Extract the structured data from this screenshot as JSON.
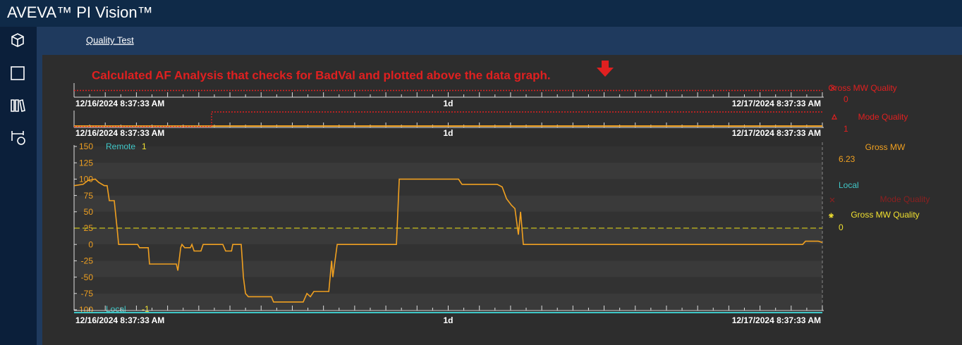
{
  "header": {
    "title": "AVEVA™ PI Vision™"
  },
  "display": {
    "title": "Quality Test"
  },
  "annotation": "Calculated AF Analysis that checks for BadVal and plotted above the data graph.",
  "trends": [
    {
      "start": "12/16/2024 8:37:33 AM",
      "duration": "1d",
      "end": "12/17/2024 8:37:33 AM",
      "xlim": [
        0,
        24
      ],
      "ylim": [
        0,
        1
      ],
      "series": [
        {
          "color": "#e02020",
          "x": [
            0,
            24
          ],
          "values": [
            0.5,
            0.5
          ]
        }
      ],
      "legend": [
        {
          "name": "Gross MW Quality",
          "value": 0,
          "color": "#e02020"
        }
      ]
    },
    {
      "start": "12/16/2024 8:37:33 AM",
      "duration": "1d",
      "end": "12/17/2024 8:37:33 AM",
      "xlim": [
        0,
        24
      ],
      "ylim": [
        0,
        1
      ],
      "series": [
        {
          "color": "#e02020",
          "x": [
            0,
            4.41,
            4.41,
            24
          ],
          "values": [
            0,
            0,
            1,
            1
          ]
        }
      ],
      "legend": [
        {
          "name": "Mode Quality",
          "value": 1,
          "color": "#e02020"
        }
      ]
    },
    {
      "start": "12/16/2024 8:37:33 AM",
      "duration": "1d",
      "end": "12/17/2024 8:37:33 AM",
      "xlim": [
        0,
        24
      ],
      "ylim": [
        -100,
        150
      ],
      "yticks": [
        150,
        125,
        100,
        75,
        50,
        25,
        0,
        -25,
        -50,
        -75,
        -100
      ],
      "states": [
        {
          "label": "Remote",
          "value": 1
        },
        {
          "label": "Local",
          "value": -1
        }
      ],
      "reference": {
        "value": 25,
        "color": "#b0a820"
      },
      "series": [
        {
          "color": "#f0a020",
          "x": [
            0,
            0.29,
            0.45,
            0.68,
            0.79,
            0.97,
            1.06,
            1.13,
            1.29,
            1.38,
            1.43,
            2.04,
            2.1,
            2.38,
            2.42,
            3.28,
            3.33,
            3.42,
            3.46,
            3.55,
            3.73,
            3.78,
            3.85,
            4.07,
            4.14,
            4.77,
            4.86,
            5.05,
            5.09,
            5.36,
            5.43,
            5.5,
            5.59,
            6.33,
            6.4,
            7.35,
            7.47,
            7.58,
            7.69,
            8.17,
            8.26,
            8.3,
            8.37,
            8.44,
            10.34,
            10.43,
            12.33,
            12.44,
            13.57,
            13.73,
            13.87,
            14.03,
            14.14,
            14.25,
            14.32,
            14.41,
            23.37,
            23.46,
            23.87,
            24
          ],
          "values": [
            90,
            92,
            98,
            100,
            95,
            90,
            90,
            67,
            67,
            25,
            0,
            0,
            -5,
            -5,
            -30,
            -30,
            -40,
            -5,
            0,
            -5,
            -5,
            0,
            -10,
            -10,
            0,
            0,
            -10,
            -10,
            0,
            0,
            -50,
            -75,
            -80,
            -80,
            -88,
            -88,
            -75,
            -80,
            -72,
            -72,
            -25,
            -50,
            -25,
            0,
            0,
            100,
            100,
            92,
            92,
            88,
            70,
            60,
            55,
            15,
            50,
            0,
            0,
            5,
            5,
            3
          ]
        }
      ],
      "legend": [
        {
          "name": "Gross MW",
          "value": 6.23,
          "color": "#f0a020"
        },
        {
          "name": "Local",
          "color": "#40c8c8"
        },
        {
          "name": "Mode Quality",
          "color": "#8a2020"
        },
        {
          "name": "Gross MW Quality",
          "value": 0,
          "color": "#f0e030"
        }
      ]
    }
  ]
}
